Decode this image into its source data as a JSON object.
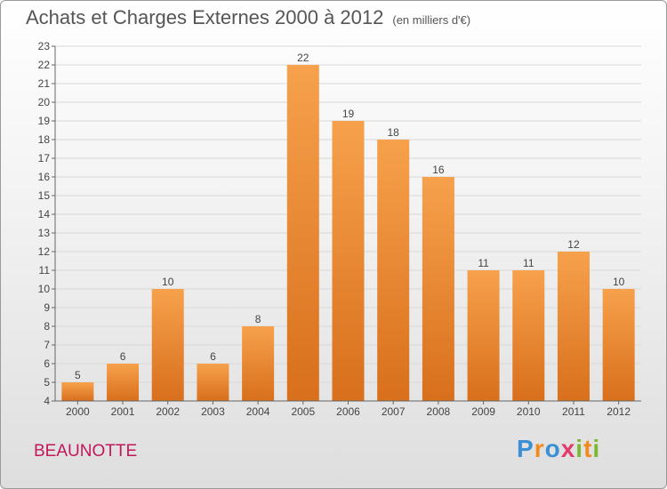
{
  "header": {
    "title": "Achats et Charges Externes 2000 à 2012",
    "subtitle": "(en milliers d'€)"
  },
  "footer": {
    "commune": "BEAUNOTTE",
    "logo_text": "Proxiti"
  },
  "colors": {
    "bar_top": "#f7a14c",
    "bar_bottom": "#d86f1c",
    "grid": "#d8d8d8",
    "commune_text": "#c3175b"
  },
  "chart_data": {
    "type": "bar",
    "categories": [
      "2000",
      "2001",
      "2002",
      "2003",
      "2004",
      "2005",
      "2006",
      "2007",
      "2008",
      "2009",
      "2010",
      "2011",
      "2012"
    ],
    "values": [
      5,
      6,
      10,
      6,
      8,
      22,
      19,
      18,
      16,
      11,
      11,
      12,
      10
    ],
    "ylim": [
      4,
      23
    ],
    "yticks": [
      4,
      5,
      6,
      7,
      8,
      9,
      10,
      11,
      12,
      13,
      14,
      15,
      16,
      17,
      18,
      19,
      20,
      21,
      22,
      23
    ],
    "grid": true,
    "data_labels": true
  }
}
